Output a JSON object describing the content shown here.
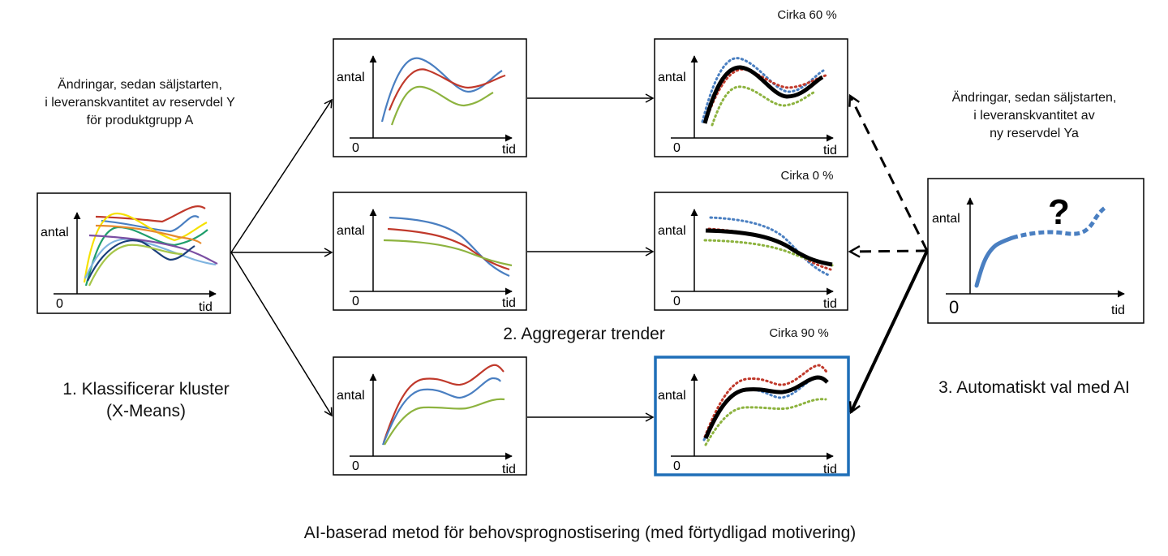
{
  "axis": {
    "y_label": "antal",
    "x_label": "tid",
    "origin": "0"
  },
  "description_left": {
    "line1": "Ändringar, sedan säljstarten,",
    "line2": "i leveranskvantitet av reservdel Y",
    "line3": "för produktgrupp A"
  },
  "description_right": {
    "line1": "Ändringar, sedan säljstarten,",
    "line2": "i leveranskvantitet av",
    "line3": "ny reservdel Ya"
  },
  "steps": {
    "step1_line1": "1. Klassificerar kluster",
    "step1_line2": "(X-Means)",
    "step2": "2. Aggregerar trender",
    "step3": "3. Automatiskt val med AI"
  },
  "percentages": {
    "top": "Cirka 60 %",
    "middle": "Cirka 0 %",
    "bottom": "Cirka 90 %"
  },
  "unknown_marker": "?",
  "caption": "AI-baserad metod för behovsprognostisering (med förtydligad motivering)",
  "colors": {
    "blue": "#4a7fc1",
    "red": "#c0392b",
    "green": "#8db33f",
    "selected_border": "#1f6fb8",
    "black": "#000000"
  }
}
